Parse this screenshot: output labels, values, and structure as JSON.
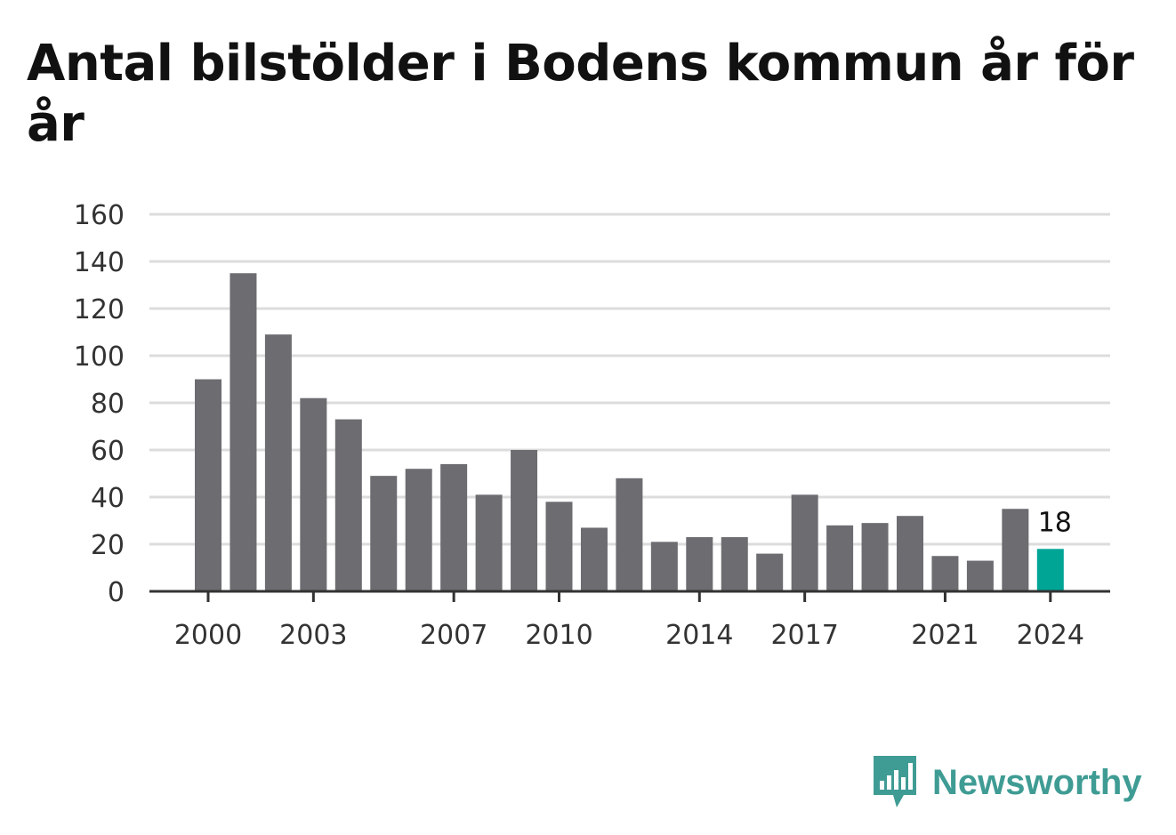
{
  "chart_data": {
    "type": "bar",
    "title": "Antal bilstölder i Bodens kommun år för år",
    "xlabel": "",
    "ylabel": "",
    "categories": [
      "2000",
      "2001",
      "2002",
      "2003",
      "2004",
      "2005",
      "2006",
      "2007",
      "2008",
      "2009",
      "2010",
      "2011",
      "2012",
      "2013",
      "2014",
      "2015",
      "2016",
      "2017",
      "2018",
      "2019",
      "2020",
      "2021",
      "2022",
      "2023",
      "2024"
    ],
    "values": [
      90,
      135,
      109,
      82,
      73,
      49,
      52,
      54,
      41,
      60,
      38,
      27,
      48,
      21,
      23,
      23,
      16,
      41,
      28,
      29,
      32,
      15,
      13,
      35,
      18
    ],
    "ylim": [
      0,
      160
    ],
    "yticks": [
      "0",
      "20",
      "40",
      "60",
      "80",
      "100",
      "120",
      "140",
      "160"
    ],
    "xticks": [
      "2000",
      "2003",
      "2007",
      "2010",
      "2014",
      "2017",
      "2021",
      "2024"
    ],
    "highlight": {
      "category": "2024",
      "label": "18"
    },
    "grid": true,
    "colors": {
      "bar": "#6d6c71",
      "highlight": "#00a596",
      "grid": "#dcdcdc",
      "axis": "#333333"
    }
  },
  "brand": {
    "name": "Newsworthy",
    "icon": "newsworthy-logo-icon",
    "color": "#3f9c94"
  }
}
